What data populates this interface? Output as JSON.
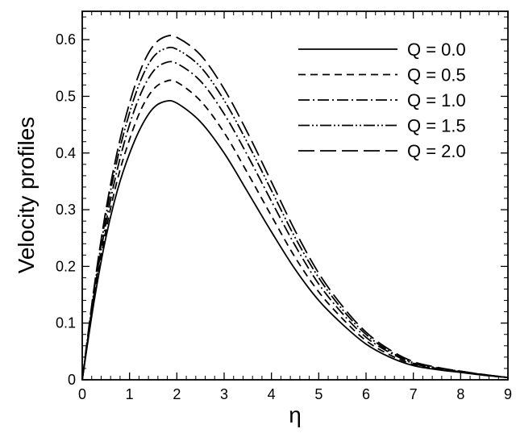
{
  "chart_data": {
    "type": "line",
    "title": "",
    "xlabel": "η",
    "ylabel": "Velocity profiles",
    "xlim": [
      0,
      9
    ],
    "ylim": [
      0,
      0.65
    ],
    "xticks": [
      "0",
      "1",
      "2",
      "3",
      "4",
      "5",
      "6",
      "7",
      "8",
      "9"
    ],
    "yticks": [
      "0",
      "0.1",
      "0.2",
      "0.3",
      "0.4",
      "0.5",
      "0.6"
    ],
    "grid": false,
    "legend_position": "top-right",
    "x": [
      0,
      0.25,
      0.5,
      0.75,
      1,
      1.25,
      1.5,
      1.75,
      2,
      2.5,
      3,
      3.5,
      4,
      4.5,
      5,
      5.5,
      6,
      6.5,
      7,
      7.5,
      8,
      8.5,
      9
    ],
    "series": [
      {
        "name": "Q = 0.0",
        "dash": "solid",
        "values": [
          0,
          0.138,
          0.251,
          0.336,
          0.399,
          0.447,
          0.479,
          0.491,
          0.488,
          0.455,
          0.4,
          0.331,
          0.261,
          0.195,
          0.14,
          0.098,
          0.063,
          0.04,
          0.025,
          0.018,
          0.013,
          0.008,
          0.004
        ]
      },
      {
        "name": "Q = 0.5",
        "dash": "short-dash",
        "values": [
          0,
          0.145,
          0.263,
          0.355,
          0.424,
          0.478,
          0.512,
          0.526,
          0.525,
          0.492,
          0.436,
          0.364,
          0.289,
          0.216,
          0.155,
          0.108,
          0.069,
          0.044,
          0.027,
          0.019,
          0.014,
          0.008,
          0.004
        ]
      },
      {
        "name": "Q = 1.0",
        "dash": "dash-dot",
        "values": [
          0,
          0.151,
          0.276,
          0.374,
          0.45,
          0.507,
          0.544,
          0.559,
          0.558,
          0.527,
          0.469,
          0.395,
          0.315,
          0.237,
          0.169,
          0.117,
          0.075,
          0.048,
          0.029,
          0.02,
          0.014,
          0.009,
          0.004
        ]
      },
      {
        "name": "Q = 1.5",
        "dash": "dash-dot-dot",
        "values": [
          0,
          0.157,
          0.289,
          0.392,
          0.471,
          0.531,
          0.569,
          0.584,
          0.583,
          0.552,
          0.493,
          0.417,
          0.334,
          0.251,
          0.18,
          0.124,
          0.08,
          0.05,
          0.03,
          0.021,
          0.015,
          0.009,
          0.004
        ]
      },
      {
        "name": "Q = 2.0",
        "dash": "long-dash",
        "values": [
          0,
          0.162,
          0.299,
          0.406,
          0.488,
          0.55,
          0.589,
          0.605,
          0.604,
          0.573,
          0.513,
          0.435,
          0.349,
          0.263,
          0.188,
          0.13,
          0.084,
          0.053,
          0.032,
          0.022,
          0.015,
          0.009,
          0.004
        ]
      }
    ]
  }
}
